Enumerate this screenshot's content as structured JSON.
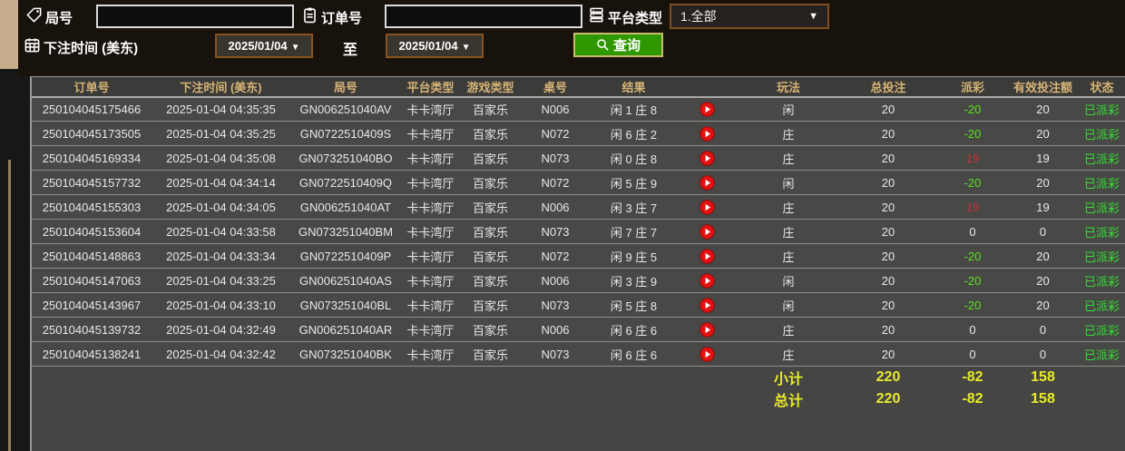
{
  "glyphs": {
    "caret_down": "▼"
  },
  "palette": {
    "header_text": "#d6b476",
    "row_text": "#e8e8e8",
    "payout_negative": "#5be11f",
    "payout_positive": "#c23636",
    "status_green": "#35dd35",
    "totals_yellow": "#e9e92f",
    "query_button_bg": "#2f9800",
    "date_border": "#8a541c",
    "play_icon_red": "#e31212",
    "corner_tan": "#c7ac8e"
  },
  "filters": {
    "round_label": "局号",
    "round_value": "",
    "order_label": "订单号",
    "order_value": "",
    "platform_label": "平台类型",
    "platform_selected": "1.全部",
    "bet_time_label": "下注时间 (美东)",
    "date_from": "2025/01/04",
    "date_to": "2025/01/04",
    "to_label": "至",
    "query_label": "查询"
  },
  "icons": {
    "round_label": "tag-icon",
    "order_label": "clipboard-icon",
    "platform_label": "list-icon",
    "bet_time_label": "calendar-icon",
    "query_button": "magnifier-icon",
    "row_action": "play-icon",
    "selects": "caret-down-icon"
  },
  "table": {
    "columns": [
      "订单号",
      "下注时间 (美东)",
      "局号",
      "平台类型",
      "游戏类型",
      "桌号",
      "结果",
      "",
      "玩法",
      "总投注",
      "派彩",
      "有效投注额",
      "状态"
    ],
    "rows": [
      {
        "order_id": "250104045175466",
        "bet_time": "2025-01-04 04:35:35",
        "round_id": "GN006251040AV",
        "platform": "卡卡湾厅",
        "game_type": "百家乐",
        "table_no": "N006",
        "result": "闲 1 庄 8",
        "bet_side": "闲",
        "total_bet": 20,
        "payout": -20,
        "valid_bet": 20,
        "status": "已派彩"
      },
      {
        "order_id": "250104045173505",
        "bet_time": "2025-01-04 04:35:25",
        "round_id": "GN0722510409S",
        "platform": "卡卡湾厅",
        "game_type": "百家乐",
        "table_no": "N072",
        "result": "闲 6 庄 2",
        "bet_side": "庄",
        "total_bet": 20,
        "payout": -20,
        "valid_bet": 20,
        "status": "已派彩"
      },
      {
        "order_id": "250104045169334",
        "bet_time": "2025-01-04 04:35:08",
        "round_id": "GN073251040BO",
        "platform": "卡卡湾厅",
        "game_type": "百家乐",
        "table_no": "N073",
        "result": "闲 0 庄 8",
        "bet_side": "庄",
        "total_bet": 20,
        "payout": 19,
        "valid_bet": 19,
        "status": "已派彩"
      },
      {
        "order_id": "250104045157732",
        "bet_time": "2025-01-04 04:34:14",
        "round_id": "GN0722510409Q",
        "platform": "卡卡湾厅",
        "game_type": "百家乐",
        "table_no": "N072",
        "result": "闲 5 庄 9",
        "bet_side": "闲",
        "total_bet": 20,
        "payout": -20,
        "valid_bet": 20,
        "status": "已派彩"
      },
      {
        "order_id": "250104045155303",
        "bet_time": "2025-01-04 04:34:05",
        "round_id": "GN006251040AT",
        "platform": "卡卡湾厅",
        "game_type": "百家乐",
        "table_no": "N006",
        "result": "闲 3 庄 7",
        "bet_side": "庄",
        "total_bet": 20,
        "payout": 19,
        "valid_bet": 19,
        "status": "已派彩"
      },
      {
        "order_id": "250104045153604",
        "bet_time": "2025-01-04 04:33:58",
        "round_id": "GN073251040BM",
        "platform": "卡卡湾厅",
        "game_type": "百家乐",
        "table_no": "N073",
        "result": "闲 7 庄 7",
        "bet_side": "庄",
        "total_bet": 20,
        "payout": 0,
        "valid_bet": 0,
        "status": "已派彩"
      },
      {
        "order_id": "250104045148863",
        "bet_time": "2025-01-04 04:33:34",
        "round_id": "GN0722510409P",
        "platform": "卡卡湾厅",
        "game_type": "百家乐",
        "table_no": "N072",
        "result": "闲 9 庄 5",
        "bet_side": "庄",
        "total_bet": 20,
        "payout": -20,
        "valid_bet": 20,
        "status": "已派彩"
      },
      {
        "order_id": "250104045147063",
        "bet_time": "2025-01-04 04:33:25",
        "round_id": "GN006251040AS",
        "platform": "卡卡湾厅",
        "game_type": "百家乐",
        "table_no": "N006",
        "result": "闲 3 庄 9",
        "bet_side": "闲",
        "total_bet": 20,
        "payout": -20,
        "valid_bet": 20,
        "status": "已派彩"
      },
      {
        "order_id": "250104045143967",
        "bet_time": "2025-01-04 04:33:10",
        "round_id": "GN073251040BL",
        "platform": "卡卡湾厅",
        "game_type": "百家乐",
        "table_no": "N073",
        "result": "闲 5 庄 8",
        "bet_side": "闲",
        "total_bet": 20,
        "payout": -20,
        "valid_bet": 20,
        "status": "已派彩"
      },
      {
        "order_id": "250104045139732",
        "bet_time": "2025-01-04 04:32:49",
        "round_id": "GN006251040AR",
        "platform": "卡卡湾厅",
        "game_type": "百家乐",
        "table_no": "N006",
        "result": "闲 6 庄 6",
        "bet_side": "庄",
        "total_bet": 20,
        "payout": 0,
        "valid_bet": 0,
        "status": "已派彩"
      },
      {
        "order_id": "250104045138241",
        "bet_time": "2025-01-04 04:32:42",
        "round_id": "GN073251040BK",
        "platform": "卡卡湾厅",
        "game_type": "百家乐",
        "table_no": "N073",
        "result": "闲 6 庄 6",
        "bet_side": "庄",
        "total_bet": 20,
        "payout": 0,
        "valid_bet": 0,
        "status": "已派彩"
      }
    ],
    "subtotal": {
      "label": "小计",
      "total_bet": 220,
      "payout": -82,
      "valid_bet": 158
    },
    "total": {
      "label": "总计",
      "total_bet": 220,
      "payout": -82,
      "valid_bet": 158
    }
  }
}
